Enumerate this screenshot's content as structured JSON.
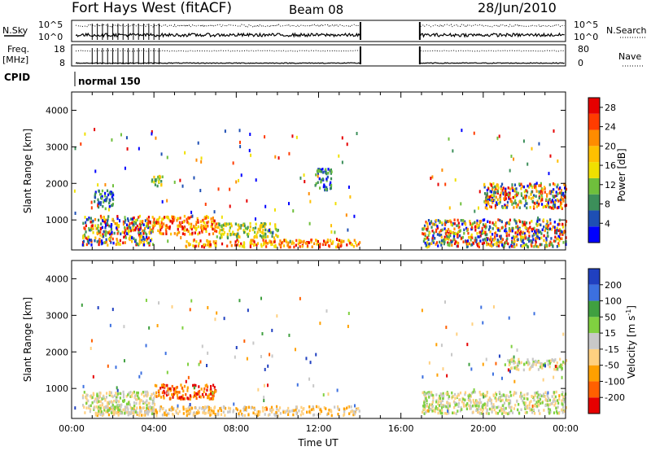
{
  "header": {
    "title": "Fort Hays West (fitACF)",
    "beam": "Beam 08",
    "date": "28/Jun/2010"
  },
  "status_panel": {
    "nsky_label": "N.Sky",
    "nsky_ticks": [
      "10^5",
      "10^0"
    ],
    "nsearch_label": "N.Search",
    "nsearch_ticks": [
      "10^5",
      "10^0"
    ],
    "freq_label": "Freq.",
    "freq_unit": "[MHz]",
    "freq_ticks": [
      "18",
      "8"
    ],
    "nave_label": "Nave",
    "nave_ticks": [
      "80",
      "0"
    ],
    "cpid_label": "CPID",
    "cpid_value": "normal 150"
  },
  "chart_data": [
    {
      "type": "heatmap",
      "name": "power",
      "ylabel": "Slant Range [km]",
      "xlabel": "",
      "xlim": [
        "00:00",
        "24:00"
      ],
      "ylim": [
        180,
        4500
      ],
      "y_ticks": [
        "1000",
        "2000",
        "3000",
        "4000"
      ],
      "colorbar": {
        "label": "Power [dB]",
        "ticks": [
          "4",
          "8",
          "12",
          "16",
          "20",
          "24",
          "28"
        ],
        "range": [
          0,
          30
        ],
        "colors": [
          "#0000ff",
          "#1e4fb4",
          "#3c8f5a",
          "#6fbf3c",
          "#f0e000",
          "#ffc000",
          "#ff8c00",
          "#ff3c00",
          "#e60000"
        ]
      },
      "data_gap_ut": [
        "14:05",
        "16:55"
      ],
      "echo_regions": [
        {
          "ut": [
            0.5,
            4.0
          ],
          "range_km": [
            300,
            1100
          ],
          "level": "mixed"
        },
        {
          "ut": [
            4.0,
            7.0
          ],
          "range_km": [
            600,
            1100
          ],
          "level": "high"
        },
        {
          "ut": [
            5.5,
            14.0
          ],
          "range_km": [
            250,
            450
          ],
          "level": "high"
        },
        {
          "ut": [
            7.0,
            10.0
          ],
          "range_km": [
            500,
            900
          ],
          "level": "mid"
        },
        {
          "ut": [
            1.0,
            2.0
          ],
          "range_km": [
            1300,
            1800
          ],
          "level": "low"
        },
        {
          "ut": [
            3.8,
            4.4
          ],
          "range_km": [
            1900,
            2200
          ],
          "level": "mid"
        },
        {
          "ut": [
            11.8,
            12.6
          ],
          "range_km": [
            1800,
            2400
          ],
          "level": "low"
        },
        {
          "ut": [
            17.0,
            24.0
          ],
          "range_km": [
            250,
            1000
          ],
          "level": "mixed"
        },
        {
          "ut": [
            20.0,
            24.0
          ],
          "range_km": [
            1300,
            2000
          ],
          "level": "mixed"
        }
      ]
    },
    {
      "type": "heatmap",
      "name": "velocity",
      "ylabel": "Slant Range [km]",
      "xlabel": "Time UT",
      "xlim": [
        "00:00",
        "24:00"
      ],
      "ylim": [
        180,
        4500
      ],
      "x_ticks": [
        "00:00",
        "04:00",
        "08:00",
        "12:00",
        "16:00",
        "20:00",
        "00:00"
      ],
      "y_ticks": [
        "1000",
        "2000",
        "3000",
        "4000"
      ],
      "colorbar": {
        "label": "Velocity [m s",
        "label_exp": "-1",
        "label_end": "]",
        "ticks": [
          "200",
          "100",
          "50",
          "15",
          "-15",
          "-50",
          "-100",
          "-200"
        ],
        "range": [
          -250,
          250
        ],
        "colors": [
          "#2040c0",
          "#3c70e0",
          "#40a040",
          "#80d040",
          "#c8c8c8",
          "#ffd080",
          "#ffa000",
          "#ff6000",
          "#e60000"
        ]
      },
      "data_gap_ut": [
        "14:05",
        "16:55"
      ],
      "echo_regions": [
        {
          "ut": [
            4.0,
            7.0
          ],
          "range_km": [
            700,
            1100
          ],
          "level": "neg-large"
        },
        {
          "ut": [
            1.0,
            14.0
          ],
          "range_km": [
            250,
            500
          ],
          "level": "neg-small"
        },
        {
          "ut": [
            0.5,
            4.0
          ],
          "range_km": [
            300,
            900
          ],
          "level": "near-zero"
        },
        {
          "ut": [
            17.0,
            24.0
          ],
          "range_km": [
            300,
            900
          ],
          "level": "near-zero"
        },
        {
          "ut": [
            21.0,
            24.0
          ],
          "range_km": [
            1500,
            1800
          ],
          "level": "near-zero"
        }
      ]
    }
  ]
}
